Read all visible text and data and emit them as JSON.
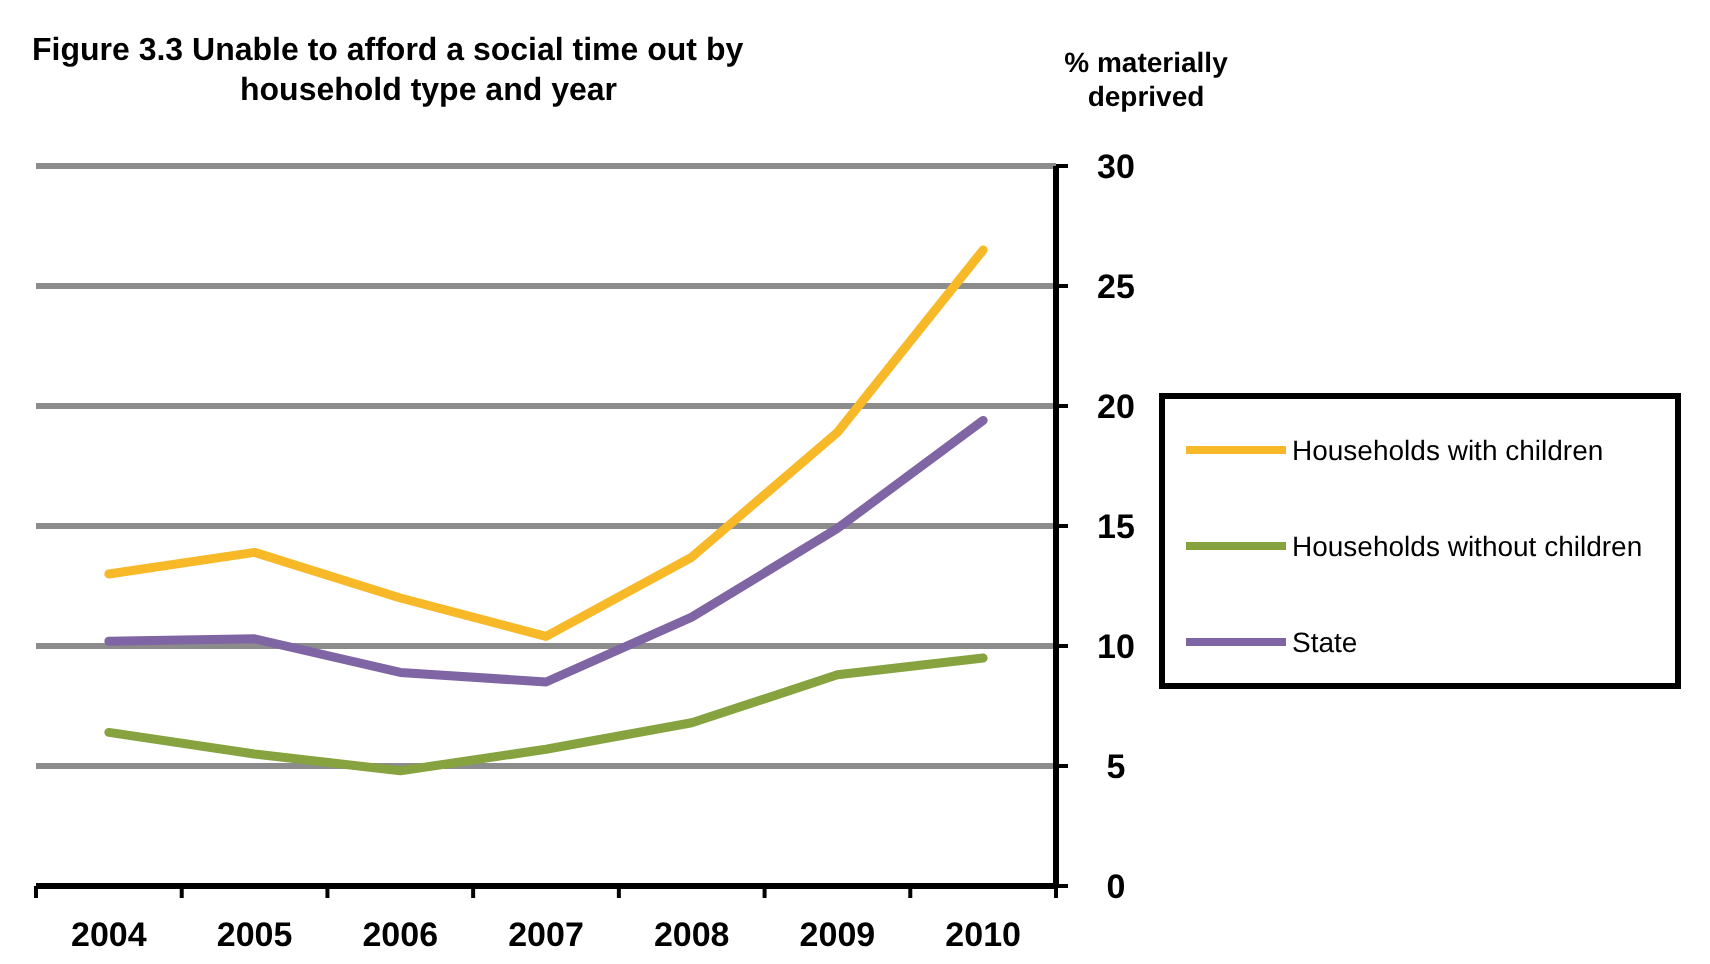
{
  "chart_data": {
    "type": "line",
    "title": "Figure 3.3  Unable to afford a social time out by\nhousehold type and year",
    "ylabel": "% materially\ndeprived",
    "categories": [
      "2004",
      "2005",
      "2006",
      "2007",
      "2008",
      "2009",
      "2010"
    ],
    "series": [
      {
        "name": "Households with children",
        "color": "#f7b928",
        "values": [
          13.0,
          13.9,
          12.0,
          10.4,
          13.7,
          18.9,
          26.5
        ]
      },
      {
        "name": "Households without children",
        "color": "#86a33f",
        "values": [
          6.4,
          5.5,
          4.8,
          5.7,
          6.8,
          8.8,
          9.5
        ]
      },
      {
        "name": "State",
        "color": "#7f65a3",
        "values": [
          10.2,
          10.3,
          8.9,
          8.5,
          11.2,
          14.9,
          19.4
        ]
      }
    ],
    "ylim": [
      0,
      30
    ],
    "yticks": [
      0,
      5,
      10,
      15,
      20,
      25,
      30
    ],
    "grid": "y",
    "legend": "right",
    "marker": "none",
    "line_style": "solid"
  }
}
